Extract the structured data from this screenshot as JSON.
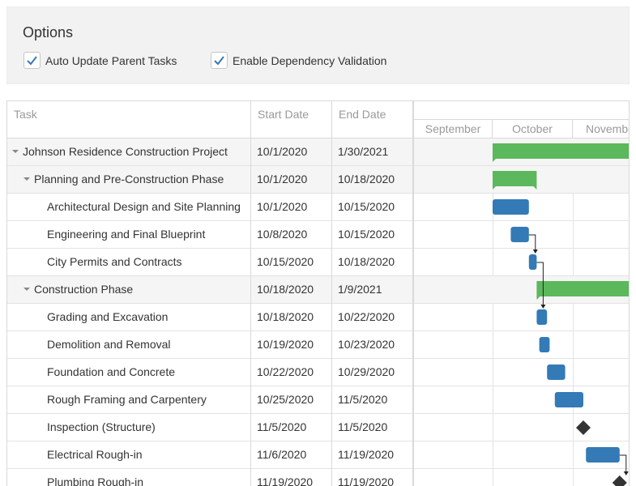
{
  "options": {
    "title": "Options",
    "auto_update_label": "Auto Update Parent Tasks",
    "auto_update_checked": true,
    "dependency_label": "Enable Dependency Validation",
    "dependency_checked": true
  },
  "columns": {
    "task": "Task",
    "start": "Start Date",
    "end": "End Date"
  },
  "timeline": {
    "months": [
      "September",
      "October",
      "November"
    ]
  },
  "colors": {
    "summary_bar": "#5cb85c",
    "task_bar": "#337ab7",
    "milestone": "#333333",
    "accent": "#337ab7"
  },
  "tasks": [
    {
      "name": "Johnson Residence Construction Project",
      "start": "10/1/2020",
      "end": "1/30/2021",
      "level": 0,
      "parent": true,
      "kind": "summary"
    },
    {
      "name": "Planning and Pre-Construction Phase",
      "start": "10/1/2020",
      "end": "10/18/2020",
      "level": 1,
      "parent": true,
      "kind": "summary"
    },
    {
      "name": "Architectural Design and Site Planning",
      "start": "10/1/2020",
      "end": "10/15/2020",
      "level": 2,
      "parent": false,
      "kind": "task"
    },
    {
      "name": "Engineering and Final Blueprint",
      "start": "10/8/2020",
      "end": "10/15/2020",
      "level": 2,
      "parent": false,
      "kind": "task"
    },
    {
      "name": "City Permits and Contracts",
      "start": "10/15/2020",
      "end": "10/18/2020",
      "level": 2,
      "parent": false,
      "kind": "task"
    },
    {
      "name": "Construction Phase",
      "start": "10/18/2020",
      "end": "1/9/2021",
      "level": 1,
      "parent": true,
      "kind": "summary"
    },
    {
      "name": "Grading and Excavation",
      "start": "10/18/2020",
      "end": "10/22/2020",
      "level": 2,
      "parent": false,
      "kind": "task"
    },
    {
      "name": "Demolition and Removal",
      "start": "10/19/2020",
      "end": "10/23/2020",
      "level": 2,
      "parent": false,
      "kind": "task"
    },
    {
      "name": "Foundation and Concrete",
      "start": "10/22/2020",
      "end": "10/29/2020",
      "level": 2,
      "parent": false,
      "kind": "task"
    },
    {
      "name": "Rough Framing and Carpentery",
      "start": "10/25/2020",
      "end": "11/5/2020",
      "level": 2,
      "parent": false,
      "kind": "task"
    },
    {
      "name": "Inspection (Structure)",
      "start": "11/5/2020",
      "end": "11/5/2020",
      "level": 2,
      "parent": false,
      "kind": "milestone"
    },
    {
      "name": "Electrical Rough-in",
      "start": "11/6/2020",
      "end": "11/19/2020",
      "level": 2,
      "parent": false,
      "kind": "task"
    },
    {
      "name": "Plumbing Rough-in",
      "start": "11/19/2020",
      "end": "11/19/2020",
      "level": 2,
      "parent": false,
      "kind": "milestone"
    }
  ],
  "dependencies": [
    {
      "from": 3,
      "to": 4
    },
    {
      "from": 4,
      "to": 6
    },
    {
      "from": 11,
      "to": 12
    }
  ]
}
